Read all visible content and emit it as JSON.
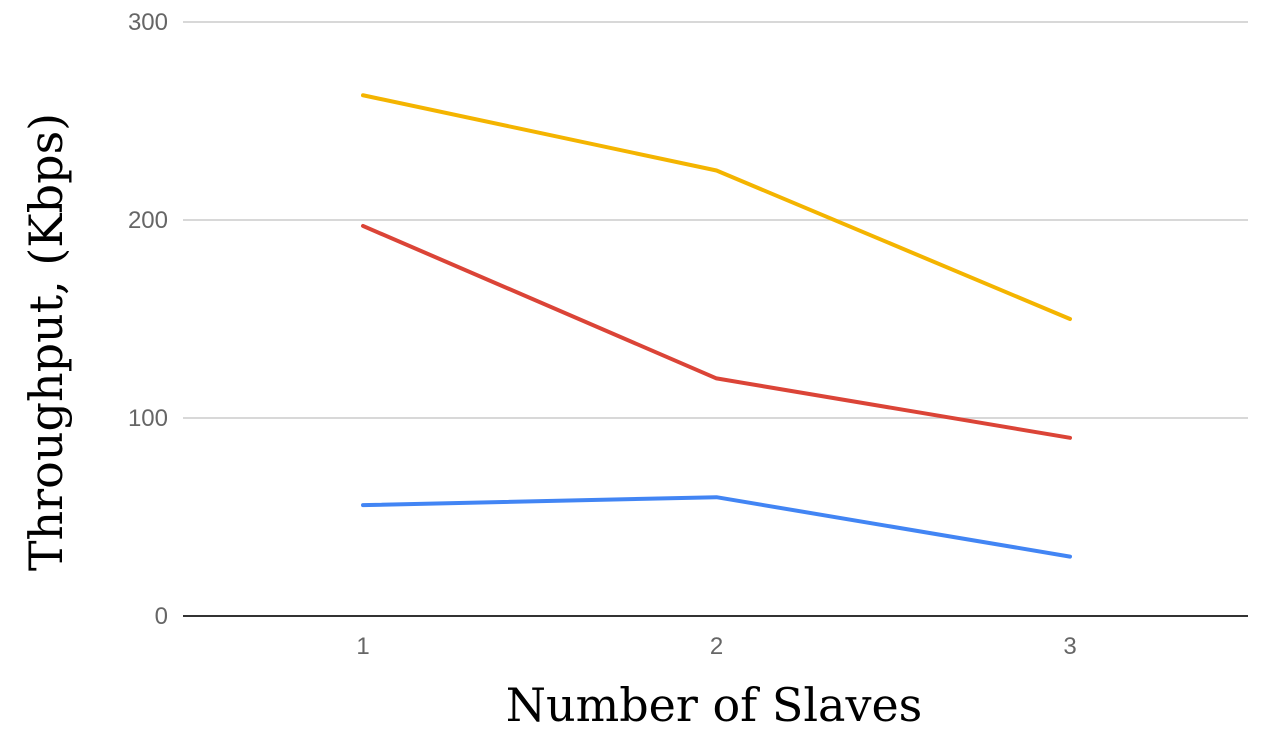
{
  "chart_data": {
    "type": "line",
    "title": "",
    "xlabel": "Number of Slaves",
    "ylabel": "Throughput, (Kbps)",
    "categories": [
      "1",
      "2",
      "3"
    ],
    "ylim": [
      0,
      300
    ],
    "yticks": [
      "0",
      "100",
      "200",
      "300"
    ],
    "grid": true,
    "legend": "none",
    "series": [
      {
        "color": "#F4B400",
        "values": [
          263,
          225,
          150
        ]
      },
      {
        "color": "#DB4437",
        "values": [
          197,
          120,
          90
        ]
      },
      {
        "color": "#4285F4",
        "values": [
          56,
          60,
          30
        ]
      }
    ]
  }
}
